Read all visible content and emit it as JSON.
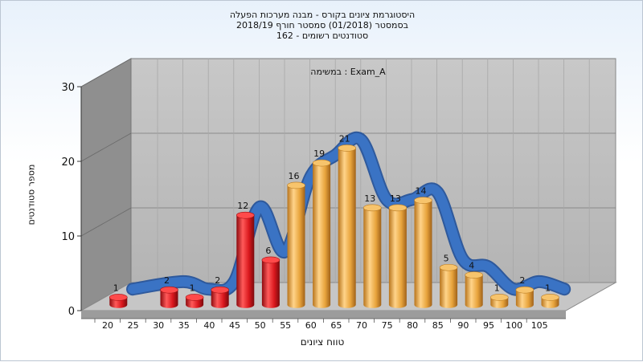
{
  "titles": {
    "line1": "היסטוגרמת ציונים בקורס - מבנה מערכות הפעלה",
    "line2": "בסמסטר  (01/2018)  סמסטר חורף 2018/19",
    "line3": "סטודנטים רשומים - 162"
  },
  "chart_data": {
    "type": "bar",
    "subtitle": "במשימה : Exam_A",
    "xlabel": "טווח ציונים",
    "ylabel": "מספר סטודנטים",
    "ylim": [
      0,
      30
    ],
    "yticks": [
      0,
      10,
      20,
      30
    ],
    "x_ticks": [
      "20",
      "25",
      "30",
      "35",
      "40",
      "45",
      "50",
      "55",
      "60",
      "65",
      "70",
      "75",
      "80",
      "85",
      "90",
      "95",
      "100",
      "105"
    ],
    "categories": [
      "20",
      "30",
      "35",
      "40",
      "45",
      "50",
      "55",
      "60",
      "65",
      "70",
      "75",
      "80",
      "85",
      "90",
      "95",
      "100",
      "105"
    ],
    "values": [
      1,
      2,
      1,
      2,
      12,
      6,
      16,
      19,
      21,
      13,
      13,
      14,
      5,
      4,
      1,
      2,
      1
    ],
    "bar_colors": [
      "red",
      "red",
      "red",
      "red",
      "red",
      "red",
      "orange",
      "orange",
      "orange",
      "orange",
      "orange",
      "orange",
      "orange",
      "orange",
      "orange",
      "orange",
      "orange"
    ],
    "smooth_curve": true,
    "grid": true,
    "colors": {
      "red": "#d9171d",
      "orange": "#e8a43c",
      "curve": "#3a73c4",
      "wall": "#9a9a9a",
      "floor": "#c4c4c4"
    }
  }
}
